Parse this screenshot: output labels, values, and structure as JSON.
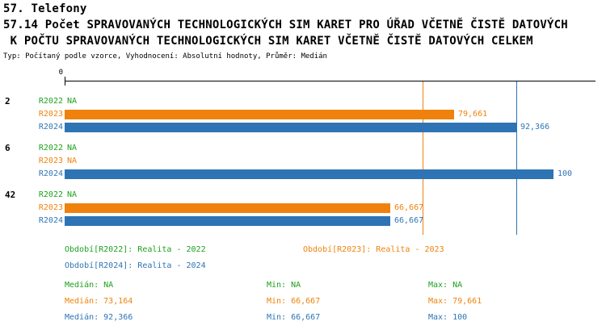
{
  "header": {
    "title": "57. Telefony",
    "subtitle_line1": "57.14 Počet SPRAVOVANÝCH TECHNOLOGICKÝCH SIM KARET PRO ÚŘAD VČETNĚ ČISTĚ DATOVÝCH",
    "subtitle_line2": " K POČTU SPRAVOVANÝCH TECHNOLOGICKÝCH SIM KARET VČETNĚ ČISTĚ DATOVÝCH CELKEM",
    "meta": "Typ: Počítaný podle vzorce, Vyhodnocení: Absolutní hodnoty, Průměr: Medián"
  },
  "colors": {
    "green": "#1fa01f",
    "orange": "#ef820d",
    "blue": "#2e74b5"
  },
  "chart_data": {
    "type": "bar",
    "orientation": "horizontal",
    "xlim": [
      0,
      100
    ],
    "axis": {
      "zero_label": "0"
    },
    "series_names": [
      "R2022",
      "R2023",
      "R2024"
    ],
    "groups": [
      {
        "label": "2",
        "rows": [
          {
            "series": "R2022",
            "value": null,
            "display": "NA",
            "color": "green"
          },
          {
            "series": "R2023",
            "value": 79.661,
            "display": "79,661",
            "color": "orange"
          },
          {
            "series": "R2024",
            "value": 92.366,
            "display": "92,366",
            "color": "blue"
          }
        ]
      },
      {
        "label": "6",
        "rows": [
          {
            "series": "R2022",
            "value": null,
            "display": "NA",
            "color": "green"
          },
          {
            "series": "R2023",
            "value": null,
            "display": "NA",
            "color": "orange"
          },
          {
            "series": "R2024",
            "value": 100,
            "display": "100",
            "color": "blue"
          }
        ]
      },
      {
        "label": "42",
        "rows": [
          {
            "series": "R2022",
            "value": null,
            "display": "NA",
            "color": "green"
          },
          {
            "series": "R2023",
            "value": 66.667,
            "display": "66,667",
            "color": "orange"
          },
          {
            "series": "R2024",
            "value": 66.667,
            "display": "66,667",
            "color": "blue"
          }
        ]
      }
    ],
    "median_lines": [
      {
        "series": "R2023",
        "value": 73.164,
        "color": "orange"
      },
      {
        "series": "R2024",
        "value": 92.366,
        "color": "blue"
      }
    ]
  },
  "legend": [
    {
      "series": "R2022",
      "text": "Období[R2022]: Realita - 2022",
      "color": "green"
    },
    {
      "series": "R2023",
      "text": "Období[R2023]: Realita - 2023",
      "color": "orange"
    },
    {
      "series": "R2024",
      "text": "Období[R2024]: Realita - 2024",
      "color": "blue"
    }
  ],
  "stats": [
    {
      "series": "R2022",
      "median": "Medián: NA",
      "min": "Min: NA",
      "max": "Max: NA",
      "color": "green"
    },
    {
      "series": "R2023",
      "median": "Medián: 73,164",
      "min": "Min: 66,667",
      "max": "Max: 79,661",
      "color": "orange"
    },
    {
      "series": "R2024",
      "median": "Medián: 92,366",
      "min": "Min: 66,667",
      "max": "Max: 100",
      "color": "blue"
    }
  ]
}
